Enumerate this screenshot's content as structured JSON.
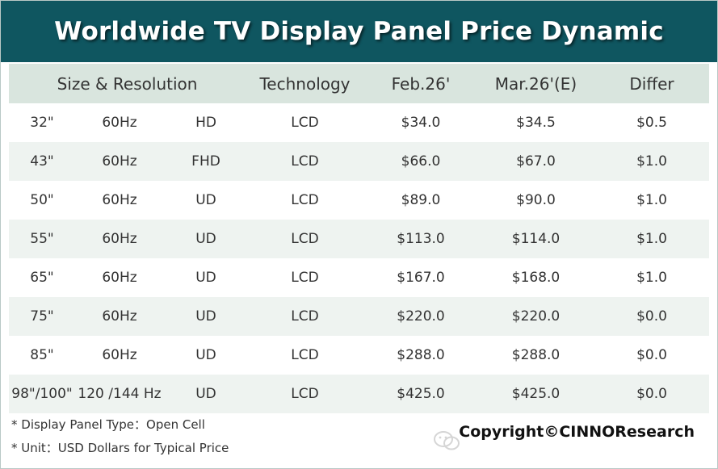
{
  "title": "Worldwide TV Display Panel Price Dynamic",
  "chart_data": {
    "type": "table",
    "title": "Worldwide TV Display Panel Price Dynamic",
    "columns": [
      "Size & Resolution",
      "Technology",
      "Feb.26'",
      "Mar.26'(E)",
      "Differ"
    ],
    "rows": [
      {
        "size": "32\"",
        "refresh": "60Hz",
        "resolution": "HD",
        "technology": "LCD",
        "feb": "$34.0",
        "mar": "$34.5",
        "differ": "$0.5"
      },
      {
        "size": "43\"",
        "refresh": "60Hz",
        "resolution": "FHD",
        "technology": "LCD",
        "feb": "$66.0",
        "mar": "$67.0",
        "differ": "$1.0"
      },
      {
        "size": "50\"",
        "refresh": "60Hz",
        "resolution": "UD",
        "technology": "LCD",
        "feb": "$89.0",
        "mar": "$90.0",
        "differ": "$1.0"
      },
      {
        "size": "55\"",
        "refresh": "60Hz",
        "resolution": "UD",
        "technology": "LCD",
        "feb": "$113.0",
        "mar": "$114.0",
        "differ": "$1.0"
      },
      {
        "size": "65\"",
        "refresh": "60Hz",
        "resolution": "UD",
        "technology": "LCD",
        "feb": "$167.0",
        "mar": "$168.0",
        "differ": "$1.0"
      },
      {
        "size": "75\"",
        "refresh": "60Hz",
        "resolution": "UD",
        "technology": "LCD",
        "feb": "$220.0",
        "mar": "$220.0",
        "differ": "$0.0"
      },
      {
        "size": "85\"",
        "refresh": "60Hz",
        "resolution": "UD",
        "technology": "LCD",
        "feb": "$288.0",
        "mar": "$288.0",
        "differ": "$0.0"
      },
      {
        "size": "98\"/100\"",
        "refresh": "120 /144 Hz",
        "resolution": "UD",
        "technology": "LCD",
        "feb": "$425.0",
        "mar": "$425.0",
        "differ": "$0.0"
      }
    ]
  },
  "footer": {
    "note1": "* Display Panel Type：Open Cell",
    "note2": "* Unit：USD Dollars for Typical Price",
    "copyright": "Copyright©CINNOResearch"
  },
  "colors": {
    "title_bg": "#0f5660",
    "header_bg": "#d9e5de",
    "stripe_bg": "#eef3f0"
  },
  "icons": {
    "watermark": "wechat-icon"
  }
}
